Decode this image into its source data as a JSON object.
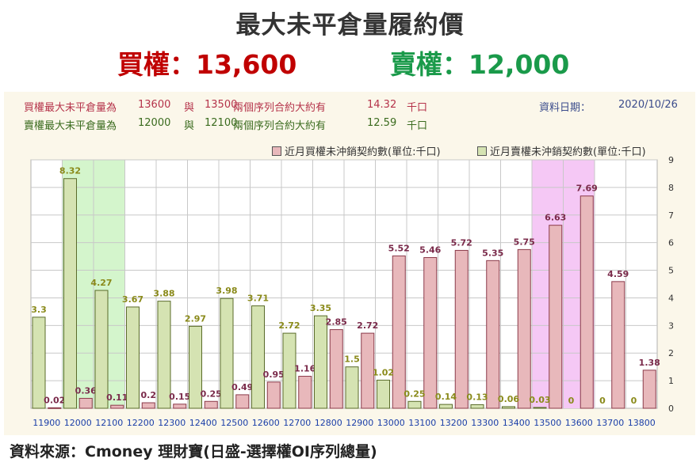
{
  "header": {
    "title": "最大未平倉量履約價",
    "call_text": "買權：13,600",
    "put_text": "賣權：12,000"
  },
  "info": {
    "call_row": {
      "label": "買權最大未平倉量為",
      "strike1": "13600",
      "conj": "與",
      "strike2": "13500",
      "desc": "兩個序列合約大約有",
      "value": "14.32",
      "unit": "千口"
    },
    "put_row": {
      "label": "賣權最大未平倉量為",
      "strike1": "12000",
      "conj": "與",
      "strike2": "12100",
      "desc": "兩個序列合約大約有",
      "value": "12.59",
      "unit": "千口"
    },
    "date_label": "資料日期：",
    "date_value": "2020/10/26"
  },
  "footer": {
    "source": "資料來源：Cmoney 理財寶(日盛-選擇權OI序列總量)"
  },
  "colors": {
    "call_fill": "#e8b8bb",
    "call_stroke": "#8b3a4a",
    "put_fill": "#d5e3b2",
    "put_stroke": "#5a6b2a",
    "call_label": "#7a2a4a",
    "put_label": "#8a8a1a",
    "call_highlight": "#f5c8f5",
    "put_highlight": "#d4f5cc",
    "axis_label": "#1a3ea8"
  },
  "chart_data": {
    "type": "bar",
    "categories": [
      "11900",
      "12000",
      "12100",
      "12200",
      "12300",
      "12400",
      "12500",
      "12600",
      "12700",
      "12800",
      "12900",
      "13000",
      "13100",
      "13200",
      "13300",
      "13400",
      "13500",
      "13600",
      "13700",
      "13800"
    ],
    "series": [
      {
        "name": "近月買權未沖銷契約數(單位:千口)",
        "values": [
          0.02,
          0.36,
          0.11,
          0.2,
          0.15,
          0.25,
          0.49,
          0.95,
          1.16,
          2.85,
          2.72,
          5.52,
          5.46,
          5.72,
          5.35,
          5.75,
          6.63,
          7.69,
          4.59,
          1.38
        ]
      },
      {
        "name": "近月賣權未沖銷契約數(單位:千口)",
        "values": [
          3.3,
          8.32,
          4.27,
          3.67,
          3.88,
          2.97,
          3.98,
          3.71,
          2.72,
          3.35,
          1.5,
          1.02,
          0.25,
          0.14,
          0.13,
          0.06,
          0.03,
          0,
          0,
          0
        ]
      }
    ],
    "value_labels": {
      "call": [
        "0.02",
        "0.36",
        "0.11",
        "0.2",
        "0.15",
        "0.25",
        "0.49",
        "0.95",
        "1.16",
        "2.85",
        "2.72",
        "5.52",
        "5.46",
        "5.72",
        "5.35",
        "5.75",
        "6.63",
        "7.69",
        "4.59",
        "1.38"
      ],
      "put": [
        "3.3",
        "8.32",
        "4.27",
        "3.67",
        "3.88",
        "2.97",
        "3.98",
        "3.71",
        "2.72",
        "3.35",
        "1.5",
        "1.02",
        "0.25",
        "0.14",
        "0.13",
        "0.06",
        "0.03",
        "0",
        "0",
        "0"
      ]
    },
    "ylim": [
      0,
      9
    ],
    "yticks": [
      "0",
      "1",
      "2",
      "3",
      "4",
      "5",
      "6",
      "7",
      "8",
      "9"
    ],
    "highlight_put": [
      "12000",
      "12100"
    ],
    "highlight_call": [
      "13500",
      "13600"
    ],
    "legend_position": "top-right",
    "grid": true
  }
}
